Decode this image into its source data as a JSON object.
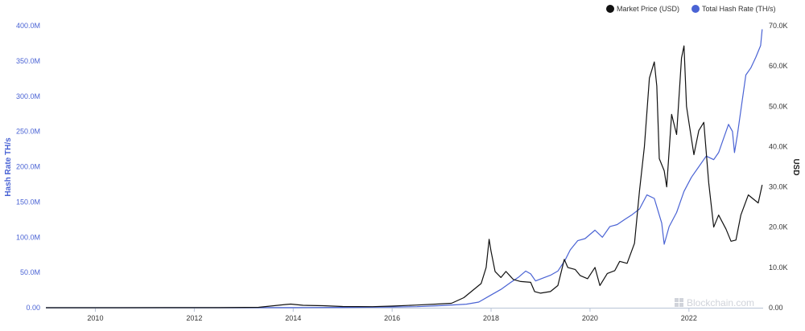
{
  "colors": {
    "price": "#111111",
    "hashrate": "#4a63d4",
    "axis": "#b8c3d6",
    "watermark": "#d0d3da"
  },
  "legend": [
    {
      "label": "Market Price (USD)",
      "color": "#111111"
    },
    {
      "label": "Total Hash Rate (TH/s)",
      "color": "#4a63d4"
    }
  ],
  "watermark": "Blockchain.com",
  "watermark_icon": "blockchain-logo-icon",
  "chart_data": {
    "type": "line",
    "title": "",
    "legend_position": "top-right",
    "grid": false,
    "x_ticks": [
      "2010",
      "2012",
      "2014",
      "2016",
      "2018",
      "2020",
      "2022"
    ],
    "xlim": [
      2009.0,
      2023.5
    ],
    "y_left": {
      "label": "Hash Rate TH/s",
      "ticks": [
        "0.00",
        "50.0M",
        "100.0M",
        "150.0M",
        "200.0M",
        "250.0M",
        "300.0M",
        "350.0M",
        "400.0M"
      ],
      "lim": [
        0,
        400
      ]
    },
    "y_right": {
      "label": "USD",
      "ticks": [
        "0.00",
        "10.0K",
        "20.0K",
        "30.0K",
        "40.0K",
        "50.0K",
        "60.0K",
        "70.0K"
      ],
      "lim": [
        0,
        70
      ]
    },
    "series": [
      {
        "name": "Market Price (USD)",
        "axis": "right",
        "unit": "thousands USD",
        "points": [
          [
            2009.0,
            0
          ],
          [
            2010.5,
            0.0
          ],
          [
            2011.4,
            0.02
          ],
          [
            2012.5,
            0.01
          ],
          [
            2013.3,
            0.1
          ],
          [
            2013.85,
            0.8
          ],
          [
            2013.95,
            0.9
          ],
          [
            2014.2,
            0.6
          ],
          [
            2014.6,
            0.5
          ],
          [
            2015.0,
            0.3
          ],
          [
            2015.6,
            0.25
          ],
          [
            2016.0,
            0.4
          ],
          [
            2016.5,
            0.65
          ],
          [
            2016.9,
            0.9
          ],
          [
            2017.2,
            1.1
          ],
          [
            2017.45,
            2.5
          ],
          [
            2017.6,
            4.0
          ],
          [
            2017.8,
            6.0
          ],
          [
            2017.9,
            10.0
          ],
          [
            2017.96,
            17.0
          ],
          [
            2018.0,
            14.0
          ],
          [
            2018.08,
            9.0
          ],
          [
            2018.2,
            7.5
          ],
          [
            2018.3,
            9.0
          ],
          [
            2018.45,
            7.0
          ],
          [
            2018.6,
            6.5
          ],
          [
            2018.8,
            6.3
          ],
          [
            2018.88,
            4.0
          ],
          [
            2019.0,
            3.6
          ],
          [
            2019.2,
            4.0
          ],
          [
            2019.35,
            5.5
          ],
          [
            2019.48,
            12.0
          ],
          [
            2019.55,
            10.0
          ],
          [
            2019.7,
            9.5
          ],
          [
            2019.8,
            8.0
          ],
          [
            2019.95,
            7.2
          ],
          [
            2020.1,
            10.0
          ],
          [
            2020.2,
            5.5
          ],
          [
            2020.35,
            8.5
          ],
          [
            2020.5,
            9.2
          ],
          [
            2020.6,
            11.5
          ],
          [
            2020.75,
            11.0
          ],
          [
            2020.9,
            16.0
          ],
          [
            2021.0,
            29.0
          ],
          [
            2021.1,
            40.0
          ],
          [
            2021.2,
            57.0
          ],
          [
            2021.3,
            61.0
          ],
          [
            2021.35,
            55.0
          ],
          [
            2021.4,
            37.0
          ],
          [
            2021.5,
            34.0
          ],
          [
            2021.55,
            30.0
          ],
          [
            2021.65,
            48.0
          ],
          [
            2021.75,
            43.0
          ],
          [
            2021.85,
            62.0
          ],
          [
            2021.9,
            65.0
          ],
          [
            2021.95,
            50.0
          ],
          [
            2022.0,
            46.0
          ],
          [
            2022.1,
            38.0
          ],
          [
            2022.2,
            44.0
          ],
          [
            2022.3,
            46.0
          ],
          [
            2022.4,
            31.0
          ],
          [
            2022.5,
            20.0
          ],
          [
            2022.6,
            23.0
          ],
          [
            2022.75,
            19.5
          ],
          [
            2022.85,
            16.5
          ],
          [
            2022.95,
            16.8
          ],
          [
            2023.05,
            23.0
          ],
          [
            2023.2,
            28.0
          ],
          [
            2023.3,
            27.0
          ],
          [
            2023.4,
            26.0
          ],
          [
            2023.48,
            30.5
          ]
        ]
      },
      {
        "name": "Total Hash Rate (TH/s)",
        "axis": "left",
        "unit": "millions TH/s",
        "points": [
          [
            2009.0,
            0
          ],
          [
            2012.0,
            0.0
          ],
          [
            2013.5,
            0.1
          ],
          [
            2014.0,
            0.1
          ],
          [
            2015.0,
            0.5
          ],
          [
            2016.0,
            1.0
          ],
          [
            2016.5,
            1.5
          ],
          [
            2017.0,
            3.0
          ],
          [
            2017.5,
            5.0
          ],
          [
            2017.75,
            8.0
          ],
          [
            2018.0,
            18.0
          ],
          [
            2018.2,
            26.0
          ],
          [
            2018.4,
            36.0
          ],
          [
            2018.55,
            43.0
          ],
          [
            2018.7,
            52.0
          ],
          [
            2018.8,
            48.0
          ],
          [
            2018.9,
            38.0
          ],
          [
            2019.05,
            42.0
          ],
          [
            2019.2,
            46.0
          ],
          [
            2019.35,
            52.0
          ],
          [
            2019.5,
            68.0
          ],
          [
            2019.6,
            82.0
          ],
          [
            2019.75,
            95.0
          ],
          [
            2019.9,
            98.0
          ],
          [
            2020.1,
            110.0
          ],
          [
            2020.25,
            100.0
          ],
          [
            2020.4,
            115.0
          ],
          [
            2020.55,
            118.0
          ],
          [
            2020.7,
            125.0
          ],
          [
            2020.85,
            132.0
          ],
          [
            2021.0,
            140.0
          ],
          [
            2021.15,
            160.0
          ],
          [
            2021.3,
            155.0
          ],
          [
            2021.45,
            120.0
          ],
          [
            2021.5,
            90.0
          ],
          [
            2021.6,
            115.0
          ],
          [
            2021.75,
            135.0
          ],
          [
            2021.9,
            165.0
          ],
          [
            2022.05,
            185.0
          ],
          [
            2022.2,
            200.0
          ],
          [
            2022.35,
            215.0
          ],
          [
            2022.5,
            210.0
          ],
          [
            2022.6,
            220.0
          ],
          [
            2022.7,
            240.0
          ],
          [
            2022.8,
            260.0
          ],
          [
            2022.88,
            250.0
          ],
          [
            2022.92,
            220.0
          ],
          [
            2022.98,
            245.0
          ],
          [
            2023.05,
            280.0
          ],
          [
            2023.15,
            330.0
          ],
          [
            2023.25,
            340.0
          ],
          [
            2023.35,
            355.0
          ],
          [
            2023.45,
            372.0
          ],
          [
            2023.48,
            395.0
          ]
        ]
      }
    ]
  }
}
